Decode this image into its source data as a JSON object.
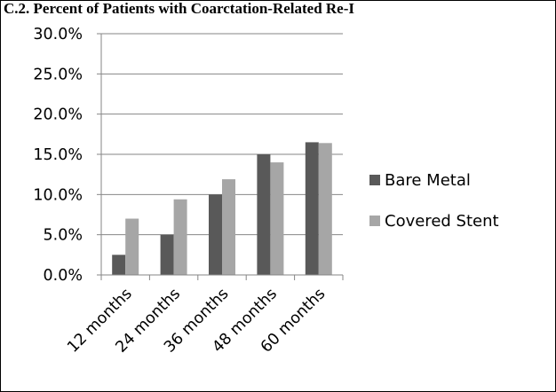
{
  "chart_data": {
    "type": "bar",
    "title": "C.2. Percent of Patients with Coarctation-Related Re-I",
    "categories": [
      "12 months",
      "24 months",
      "36 months",
      "48 months",
      "60 months"
    ],
    "series": [
      {
        "name": "Bare Metal",
        "values": [
          2.5,
          5.0,
          10.0,
          15.0,
          16.5
        ],
        "color": "#595959"
      },
      {
        "name": "Covered Stent",
        "values": [
          7.0,
          9.4,
          11.9,
          14.0,
          16.4
        ],
        "color": "#a6a6a6"
      }
    ],
    "ylim": [
      0,
      30
    ],
    "yticks": [
      "0.0%",
      "5.0%",
      "10.0%",
      "15.0%",
      "20.0%",
      "25.0%",
      "30.0%"
    ],
    "grid": true,
    "legend_position": "right"
  }
}
